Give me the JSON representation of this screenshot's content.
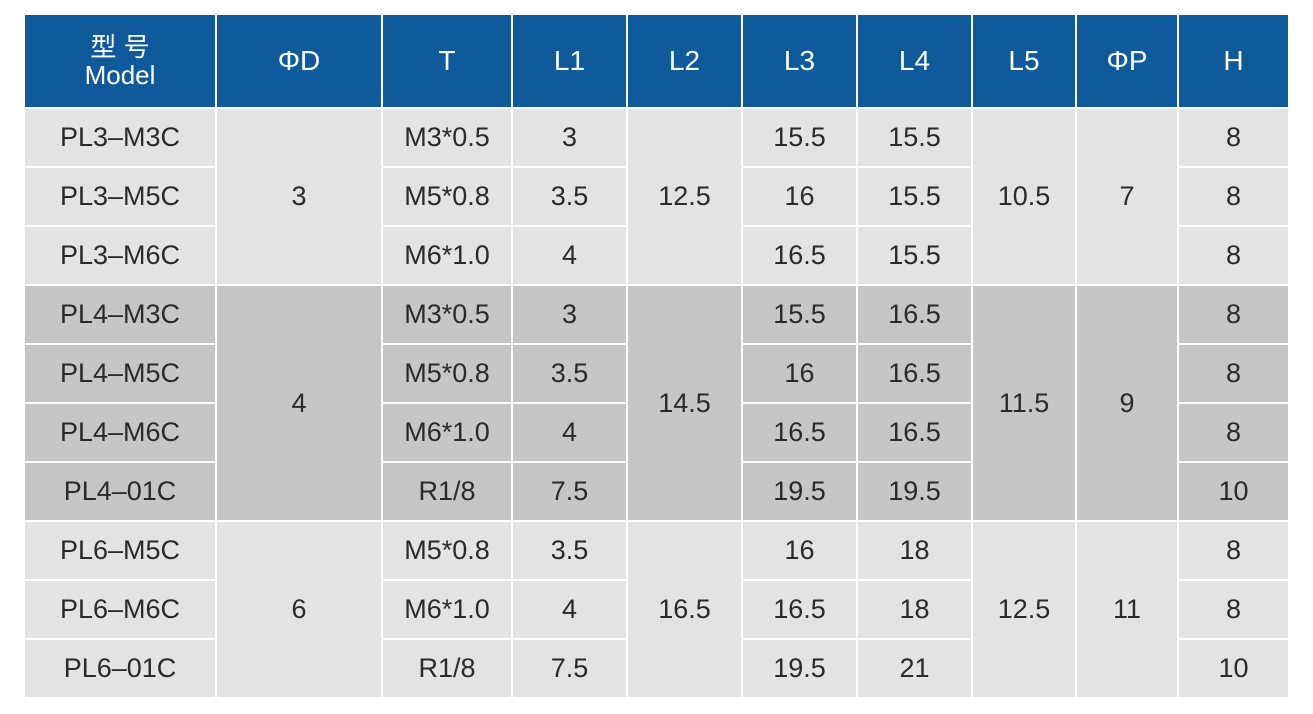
{
  "table": {
    "headers": {
      "model_cn": "型 号",
      "model_en": "Model",
      "d": "ΦD",
      "t": "T",
      "l1": "L1",
      "l2": "L2",
      "l3": "L3",
      "l4": "L4",
      "l5": "L5",
      "p": "ΦP",
      "h": "H"
    },
    "groups": [
      {
        "d": "3",
        "l2": "12.5",
        "l5": "10.5",
        "p": "7",
        "rows": [
          {
            "model": "PL3–M3C",
            "t": "M3*0.5",
            "l1": "3",
            "l3": "15.5",
            "l4": "15.5",
            "h": "8"
          },
          {
            "model": "PL3–M5C",
            "t": "M5*0.8",
            "l1": "3.5",
            "l3": "16",
            "l4": "15.5",
            "h": "8"
          },
          {
            "model": "PL3–M6C",
            "t": "M6*1.0",
            "l1": "4",
            "l3": "16.5",
            "l4": "15.5",
            "h": "8"
          }
        ]
      },
      {
        "d": "4",
        "l2": "14.5",
        "l5": "11.5",
        "p": "9",
        "rows": [
          {
            "model": "PL4–M3C",
            "t": "M3*0.5",
            "l1": "3",
            "l3": "15.5",
            "l4": "16.5",
            "h": "8"
          },
          {
            "model": "PL4–M5C",
            "t": "M5*0.8",
            "l1": "3.5",
            "l3": "16",
            "l4": "16.5",
            "h": "8"
          },
          {
            "model": "PL4–M6C",
            "t": "M6*1.0",
            "l1": "4",
            "l3": "16.5",
            "l4": "16.5",
            "h": "8"
          },
          {
            "model": "PL4–01C",
            "t": "R1/8",
            "l1": "7.5",
            "l3": "19.5",
            "l4": "19.5",
            "h": "10"
          }
        ]
      },
      {
        "d": "6",
        "l2": "16.5",
        "l5": "12.5",
        "p": "11",
        "rows": [
          {
            "model": "PL6–M5C",
            "t": "M5*0.8",
            "l1": "3.5",
            "l3": "16",
            "l4": "18",
            "h": "8"
          },
          {
            "model": "PL6–M6C",
            "t": "M6*1.0",
            "l1": "4",
            "l3": "16.5",
            "l4": "18",
            "h": "8"
          },
          {
            "model": "PL6–01C",
            "t": "R1/8",
            "l1": "7.5",
            "l3": "19.5",
            "l4": "21",
            "h": "10"
          }
        ]
      }
    ],
    "colors": {
      "header": "#0e5a9b",
      "group_light": "#e3e3e3",
      "group_dark": "#c6c6c6"
    }
  }
}
